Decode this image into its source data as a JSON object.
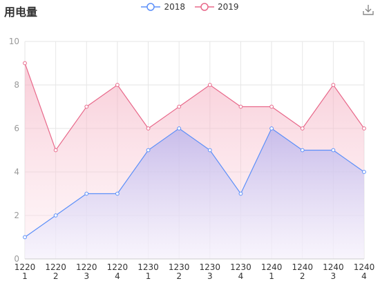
{
  "header": {
    "title": "用电量",
    "download_icon": "download-icon"
  },
  "colors": {
    "series_2018": "#5b8ff9",
    "series_2019": "#e8688a",
    "grid": "#e6e6e6",
    "axis_text": "#999999",
    "tick_text": "#333333"
  },
  "chart_data": {
    "type": "area",
    "title": "用电量",
    "categories": [
      [
        "1220",
        "1"
      ],
      [
        "1220",
        "2"
      ],
      [
        "1220",
        "3"
      ],
      [
        "1220",
        "4"
      ],
      [
        "1230",
        "1"
      ],
      [
        "1230",
        "2"
      ],
      [
        "1230",
        "3"
      ],
      [
        "1230",
        "4"
      ],
      [
        "1240",
        "1"
      ],
      [
        "1240",
        "2"
      ],
      [
        "1240",
        "3"
      ],
      [
        "1240",
        "4"
      ]
    ],
    "series": [
      {
        "name": "2018",
        "values": [
          1,
          2,
          3,
          3,
          5,
          6,
          5,
          3,
          6,
          5,
          5,
          4
        ]
      },
      {
        "name": "2019",
        "values": [
          9,
          5,
          7,
          8,
          6,
          7,
          8,
          7,
          7,
          6,
          8,
          6
        ]
      }
    ],
    "ylim": [
      0,
      10
    ],
    "yticks": [
      0,
      2,
      4,
      6,
      8,
      10
    ],
    "grid": true,
    "legend": "top-center"
  }
}
